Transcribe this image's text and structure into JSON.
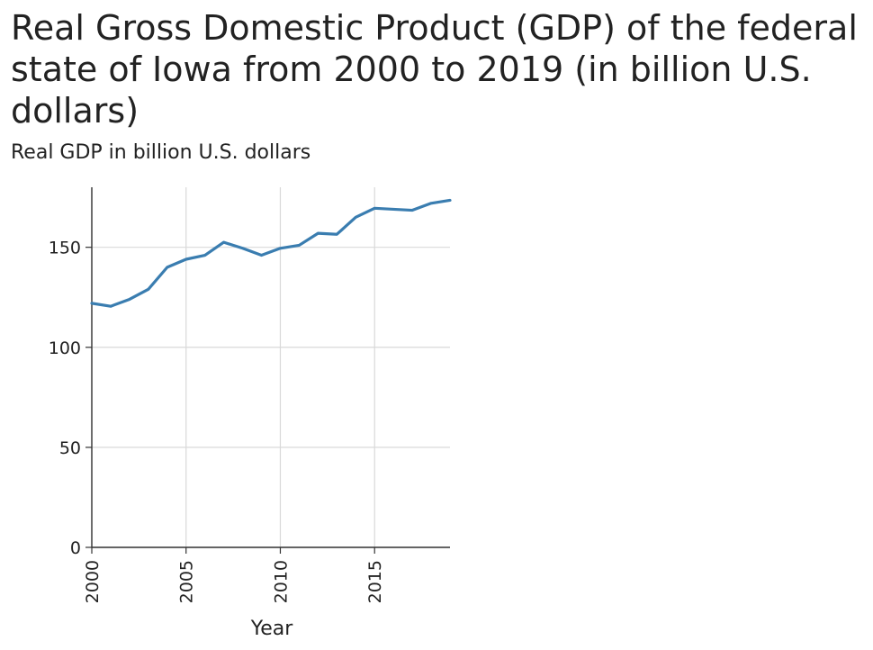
{
  "title": "Real Gross Domestic Product (GDP) of the federal state of Iowa from 2000 to 2019 (in billion U.S. dollars)",
  "subtitle": "Real GDP in billion U.S. dollars",
  "chart_data": {
    "type": "line",
    "title": "Real Gross Domestic Product (GDP) of the federal state of Iowa from 2000 to 2019 (in billion U.S. dollars)",
    "xlabel": "Year",
    "ylabel": "Real GDP in billion U.S. dollars",
    "x": [
      2000,
      2001,
      2002,
      2003,
      2004,
      2005,
      2006,
      2007,
      2008,
      2009,
      2010,
      2011,
      2012,
      2013,
      2014,
      2015,
      2016,
      2017,
      2018,
      2019
    ],
    "series": [
      {
        "values": [
          122,
          120.5,
          124,
          129,
          140,
          144,
          146,
          152.5,
          149.5,
          146,
          149.5,
          151,
          157,
          156.5,
          165,
          169.5,
          169,
          168.5,
          172,
          173.5
        ],
        "color": "#3a7db0"
      }
    ],
    "xlim": [
      2000,
      2019
    ],
    "ylim": [
      0,
      180
    ],
    "xticks": [
      "2000",
      "2005",
      "2010",
      "2015"
    ],
    "yticks": [
      "0",
      "50",
      "100",
      "150"
    ],
    "grid": true
  }
}
